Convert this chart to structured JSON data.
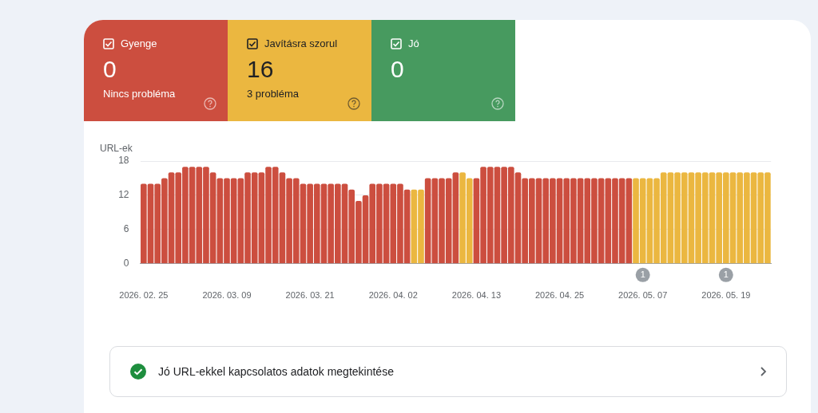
{
  "chart_data": [
    {
      "type": "other",
      "categories": [
        "Gyenge",
        "Javításra szorul",
        "Jó"
      ],
      "values": [
        0,
        16,
        0
      ],
      "data_labels": true,
      "colors": [
        "#cc4e3f",
        "#ebb740",
        "#479a5f"
      ],
      "annotations": [
        {
          "text": "Nincs probléma",
          "x": "Gyenge"
        },
        {
          "text": "3 probléma",
          "x": "Javításra szorul"
        }
      ]
    },
    {
      "type": "bar",
      "ylabel": "URL-ek",
      "categories": [
        "2026. 02. 25",
        null,
        null,
        null,
        null,
        null,
        null,
        null,
        null,
        null,
        null,
        null,
        "2026. 03. 09",
        null,
        null,
        null,
        null,
        null,
        null,
        null,
        null,
        null,
        null,
        null,
        "2026. 03. 21",
        null,
        null,
        null,
        null,
        null,
        null,
        null,
        null,
        null,
        null,
        null,
        "2026. 04. 02",
        null,
        null,
        null,
        null,
        null,
        null,
        null,
        null,
        null,
        null,
        null,
        "2026. 04. 13",
        null,
        null,
        null,
        null,
        null,
        null,
        null,
        null,
        null,
        null,
        null,
        "2026. 04. 25",
        null,
        null,
        null,
        null,
        null,
        null,
        null,
        null,
        null,
        null,
        null,
        "2026. 05. 07",
        null,
        null,
        null,
        null,
        null,
        null,
        null,
        null,
        null,
        null,
        null,
        "2026. 05. 19",
        null,
        null,
        null,
        null,
        null,
        null
      ],
      "values": [
        14,
        14,
        14,
        15,
        16,
        16,
        17,
        17,
        17,
        17,
        16,
        15,
        15,
        15,
        15,
        16,
        16,
        16,
        17,
        17,
        16,
        15,
        15,
        14,
        14,
        14,
        14,
        14,
        14,
        14,
        13,
        11,
        12,
        14,
        14,
        14,
        14,
        14,
        13,
        13,
        13,
        15,
        15,
        15,
        15,
        16,
        16,
        15,
        15,
        17,
        17,
        17,
        17,
        17,
        16,
        15,
        15,
        15,
        15,
        15,
        15,
        15,
        15,
        15,
        15,
        15,
        15,
        15,
        15,
        15,
        15,
        15,
        15,
        15,
        15,
        16,
        16,
        16,
        16,
        16,
        16,
        16,
        16,
        16,
        16,
        16,
        16,
        16,
        16,
        16,
        16
      ],
      "colors": [
        "#cc4e3f",
        "#cc4e3f",
        "#cc4e3f",
        "#cc4e3f",
        "#cc4e3f",
        "#cc4e3f",
        "#cc4e3f",
        "#cc4e3f",
        "#cc4e3f",
        "#cc4e3f",
        "#cc4e3f",
        "#cc4e3f",
        "#cc4e3f",
        "#cc4e3f",
        "#cc4e3f",
        "#cc4e3f",
        "#cc4e3f",
        "#cc4e3f",
        "#cc4e3f",
        "#cc4e3f",
        "#cc4e3f",
        "#cc4e3f",
        "#cc4e3f",
        "#cc4e3f",
        "#cc4e3f",
        "#cc4e3f",
        "#cc4e3f",
        "#cc4e3f",
        "#cc4e3f",
        "#cc4e3f",
        "#cc4e3f",
        "#cc4e3f",
        "#cc4e3f",
        "#cc4e3f",
        "#cc4e3f",
        "#cc4e3f",
        "#cc4e3f",
        "#cc4e3f",
        "#cc4e3f",
        "#ebb740",
        "#ebb740",
        "#cc4e3f",
        "#cc4e3f",
        "#cc4e3f",
        "#cc4e3f",
        "#cc4e3f",
        "#ebb740",
        "#ebb740",
        "#cc4e3f",
        "#cc4e3f",
        "#cc4e3f",
        "#cc4e3f",
        "#cc4e3f",
        "#cc4e3f",
        "#cc4e3f",
        "#cc4e3f",
        "#cc4e3f",
        "#cc4e3f",
        "#cc4e3f",
        "#cc4e3f",
        "#cc4e3f",
        "#cc4e3f",
        "#cc4e3f",
        "#cc4e3f",
        "#cc4e3f",
        "#cc4e3f",
        "#cc4e3f",
        "#cc4e3f",
        "#cc4e3f",
        "#cc4e3f",
        "#cc4e3f",
        "#ebb740",
        "#ebb740",
        "#ebb740",
        "#ebb740",
        "#ebb740",
        "#ebb740",
        "#ebb740",
        "#ebb740",
        "#ebb740",
        "#ebb740",
        "#ebb740",
        "#ebb740",
        "#ebb740",
        "#ebb740",
        "#ebb740",
        "#ebb740",
        "#ebb740",
        "#ebb740",
        "#ebb740",
        "#ebb740"
      ],
      "ylim": [
        0,
        18
      ],
      "yticks": [
        0,
        6,
        12,
        18
      ],
      "grid": "y",
      "annotations": [
        "1",
        "1",
        "Jó URL-ekkel kapcsolatos adatok megtekintése"
      ]
    }
  ]
}
